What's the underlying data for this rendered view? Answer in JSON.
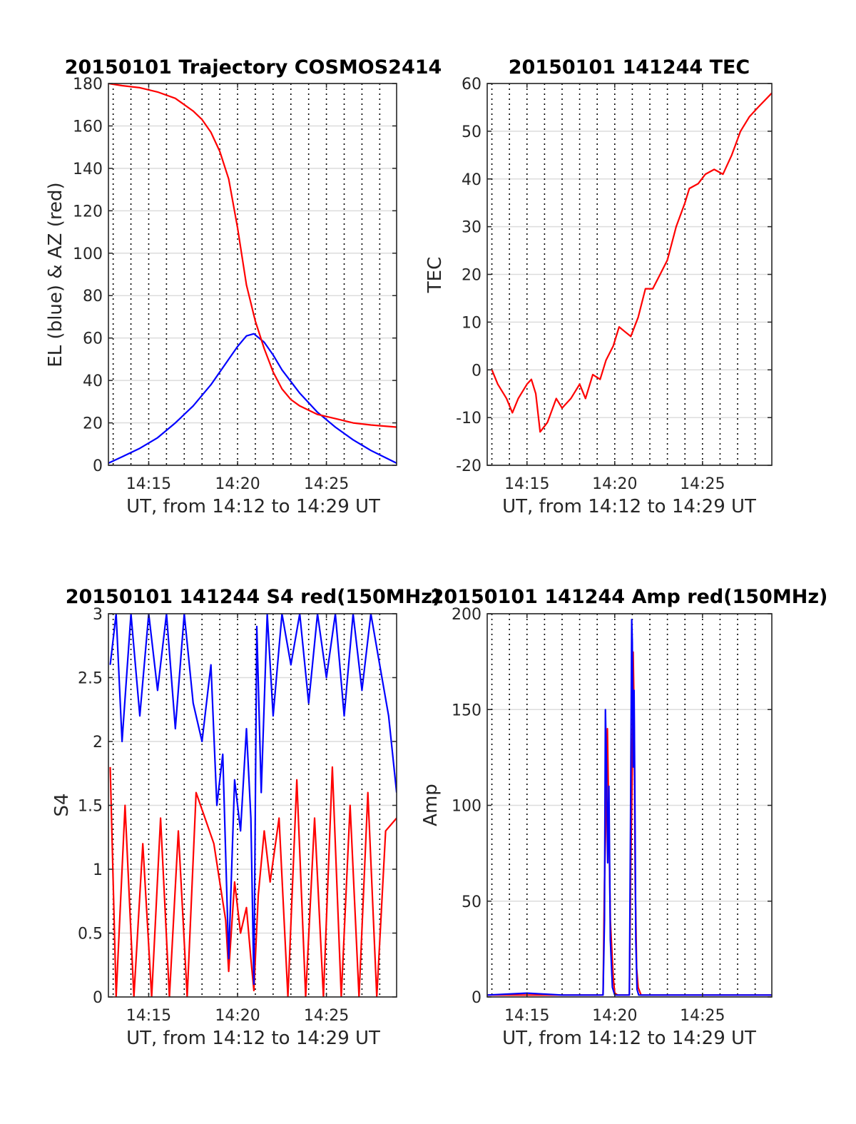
{
  "figure": {
    "background": "#ffffff"
  },
  "colors": {
    "red": "#ff0000",
    "blue": "#0000ff",
    "grid": "#dcdcdc",
    "vline": "#000000",
    "axis": "#262626"
  },
  "chart_data": [
    {
      "type": "line",
      "title": "20150101 Trajectory COSMOS2414",
      "xlabel": "UT, from 14:12 to 14:29 UT",
      "ylabel": "EL (blue) & AZ (red)",
      "xlim": [
        "14:12:44",
        "14:28:57"
      ],
      "ylim": [
        0,
        180
      ],
      "xticks": [
        {
          "t": "14:15:00",
          "label": "14:15"
        },
        {
          "t": "14:20:00",
          "label": "14:20"
        },
        {
          "t": "14:25:00",
          "label": "14:25"
        }
      ],
      "yticks": [
        "0",
        "20",
        "40",
        "60",
        "80",
        "100",
        "120",
        "140",
        "160",
        "180"
      ],
      "grid": true,
      "series": [
        {
          "color": "#0000ff",
          "x": [
            "14:12:44",
            "14:13:30",
            "14:14:30",
            "14:15:30",
            "14:16:30",
            "14:17:30",
            "14:18:30",
            "14:19:30",
            "14:20:00",
            "14:20:30",
            "14:20:55",
            "14:21:30",
            "14:22:00",
            "14:22:30",
            "14:23:30",
            "14:24:30",
            "14:25:30",
            "14:26:30",
            "14:27:30",
            "14:28:57"
          ],
          "values": [
            1,
            4,
            8,
            13,
            20,
            28,
            38,
            50,
            56,
            61,
            62,
            58,
            52,
            45,
            34,
            25,
            18,
            12,
            7,
            1
          ]
        },
        {
          "color": "#ff0000",
          "x": [
            "14:12:44",
            "14:13:30",
            "14:14:30",
            "14:15:30",
            "14:16:30",
            "14:17:30",
            "14:18:00",
            "14:18:30",
            "14:19:00",
            "14:19:30",
            "14:20:00",
            "14:20:30",
            "14:21:00",
            "14:21:30",
            "14:22:00",
            "14:22:30",
            "14:23:00",
            "14:23:30",
            "14:24:30",
            "14:25:30",
            "14:26:30",
            "14:27:30",
            "14:28:57"
          ],
          "values": [
            180,
            179,
            178,
            176,
            173,
            167,
            163,
            157,
            148,
            135,
            112,
            85,
            68,
            55,
            44,
            36,
            31,
            28,
            24,
            22,
            20,
            19,
            18
          ]
        }
      ]
    },
    {
      "type": "line",
      "title": "20150101 141244 TEC",
      "xlabel": "UT, from 14:12 to 14:29 UT",
      "ylabel": "TEC",
      "xlim": [
        "14:12:44",
        "14:28:57"
      ],
      "ylim": [
        -20,
        60
      ],
      "xticks": [
        {
          "t": "14:15:00",
          "label": "14:15"
        },
        {
          "t": "14:20:00",
          "label": "14:20"
        },
        {
          "t": "14:25:00",
          "label": "14:25"
        }
      ],
      "yticks": [
        "-20",
        "-10",
        "0",
        "10",
        "20",
        "30",
        "40",
        "50",
        "60"
      ],
      "grid": true,
      "series": [
        {
          "color": "#ff0000",
          "x": [
            "14:13:00",
            "14:13:20",
            "14:13:50",
            "14:14:10",
            "14:14:30",
            "14:15:00",
            "14:15:15",
            "14:15:30",
            "14:15:45",
            "14:16:10",
            "14:16:40",
            "14:17:00",
            "14:17:30",
            "14:18:00",
            "14:18:20",
            "14:18:45",
            "14:19:10",
            "14:19:30",
            "14:19:55",
            "14:20:15",
            "14:20:35",
            "14:20:55",
            "14:21:20",
            "14:21:45",
            "14:22:10",
            "14:22:35",
            "14:23:00",
            "14:23:30",
            "14:24:00",
            "14:24:15",
            "14:24:45",
            "14:25:10",
            "14:25:40",
            "14:26:10",
            "14:26:40",
            "14:27:10",
            "14:27:40",
            "14:28:10",
            "14:28:57"
          ],
          "values": [
            0,
            -3,
            -6,
            -9,
            -6,
            -3,
            -2,
            -5,
            -13,
            -11,
            -6,
            -8,
            -6,
            -3,
            -6,
            -1,
            -2,
            2,
            5,
            9,
            8,
            7,
            11,
            17,
            17,
            20,
            23,
            30,
            35,
            38,
            39,
            41,
            42,
            41,
            45,
            50,
            53,
            55,
            58
          ]
        }
      ]
    },
    {
      "type": "line",
      "title": "20150101 141244 S4 red(150MHz)",
      "xlabel": "UT, from 14:12 to 14:29 UT",
      "ylabel": "S4",
      "xlim": [
        "14:12:44",
        "14:28:57"
      ],
      "ylim": [
        0,
        3
      ],
      "xticks": [
        {
          "t": "14:15:00",
          "label": "14:15"
        },
        {
          "t": "14:20:00",
          "label": "14:20"
        },
        {
          "t": "14:25:00",
          "label": "14:25"
        }
      ],
      "yticks": [
        "0",
        "0.5",
        "1",
        "1.5",
        "2",
        "2.5",
        "3"
      ],
      "grid": true,
      "series": [
        {
          "color": "#ff0000",
          "x": [
            "14:12:50",
            "14:13:10",
            "14:13:40",
            "14:14:10",
            "14:14:40",
            "14:15:10",
            "14:15:40",
            "14:16:10",
            "14:16:40",
            "14:17:10",
            "14:17:40",
            "14:18:10",
            "14:18:40",
            "14:19:00",
            "14:19:20",
            "14:19:30",
            "14:19:50",
            "14:20:10",
            "14:20:30",
            "14:20:45",
            "14:20:55",
            "14:21:10",
            "14:21:30",
            "14:21:50",
            "14:22:20",
            "14:22:50",
            "14:23:20",
            "14:23:50",
            "14:24:20",
            "14:24:50",
            "14:25:20",
            "14:25:50",
            "14:26:20",
            "14:26:50",
            "14:27:20",
            "14:27:50",
            "14:28:20",
            "14:28:57"
          ],
          "values": [
            1.8,
            0,
            1.5,
            0,
            1.2,
            0,
            1.4,
            0,
            1.3,
            0,
            1.6,
            1.4,
            1.2,
            0.9,
            0.6,
            0.2,
            0.9,
            0.5,
            0.7,
            0.3,
            0.05,
            0.8,
            1.3,
            0.9,
            1.4,
            0,
            1.7,
            0,
            1.4,
            0,
            1.8,
            0,
            1.5,
            0,
            1.6,
            0,
            1.3,
            1.4
          ]
        },
        {
          "color": "#0000ff",
          "x": [
            "14:12:50",
            "14:13:10",
            "14:13:30",
            "14:14:00",
            "14:14:30",
            "14:15:00",
            "14:15:30",
            "14:16:00",
            "14:16:30",
            "14:17:00",
            "14:17:30",
            "14:18:00",
            "14:18:30",
            "14:18:50",
            "14:19:10",
            "14:19:30",
            "14:19:50",
            "14:20:10",
            "14:20:30",
            "14:20:45",
            "14:20:55",
            "14:21:05",
            "14:21:20",
            "14:21:40",
            "14:22:00",
            "14:22:30",
            "14:23:00",
            "14:23:30",
            "14:24:00",
            "14:24:30",
            "14:25:00",
            "14:25:30",
            "14:26:00",
            "14:26:30",
            "14:27:00",
            "14:27:30",
            "14:28:00",
            "14:28:30",
            "14:28:57"
          ],
          "values": [
            2.6,
            3,
            2.0,
            3,
            2.2,
            3,
            2.4,
            3,
            2.1,
            3,
            2.3,
            2.0,
            2.6,
            1.5,
            1.9,
            0.3,
            1.7,
            1.3,
            2.1,
            1.4,
            0.1,
            2.9,
            1.6,
            3,
            2.2,
            3,
            2.6,
            3,
            2.3,
            3,
            2.5,
            3,
            2.2,
            3,
            2.4,
            3,
            2.6,
            2.2,
            1.6
          ]
        }
      ]
    },
    {
      "type": "line",
      "title": "20150101 141244 Amp red(150MHz)",
      "xlabel": "UT, from 14:12 to 14:29 UT",
      "ylabel": "Amp",
      "xlim": [
        "14:12:44",
        "14:28:57"
      ],
      "ylim": [
        0,
        200
      ],
      "xticks": [
        {
          "t": "14:15:00",
          "label": "14:15"
        },
        {
          "t": "14:20:00",
          "label": "14:20"
        },
        {
          "t": "14:25:00",
          "label": "14:25"
        }
      ],
      "yticks": [
        "0",
        "50",
        "100",
        "150",
        "200"
      ],
      "grid": true,
      "series": [
        {
          "color": "#ff0000",
          "x": [
            "14:12:44",
            "14:19:20",
            "14:19:25",
            "14:19:30",
            "14:19:35",
            "14:19:40",
            "14:19:45",
            "14:19:55",
            "14:20:00",
            "14:20:10",
            "14:20:50",
            "14:20:55",
            "14:21:00",
            "14:21:03",
            "14:21:06",
            "14:21:10",
            "14:21:15",
            "14:21:20",
            "14:21:30",
            "14:28:57"
          ],
          "values": [
            1,
            1,
            60,
            95,
            140,
            90,
            40,
            10,
            2,
            1,
            1,
            70,
            120,
            180,
            150,
            60,
            15,
            5,
            1,
            1
          ]
        },
        {
          "color": "#0000ff",
          "x": [
            "14:12:44",
            "14:15:00",
            "14:17:00",
            "14:19:20",
            "14:19:25",
            "14:19:28",
            "14:19:32",
            "14:19:36",
            "14:19:40",
            "14:19:45",
            "14:19:52",
            "14:20:00",
            "14:20:50",
            "14:20:54",
            "14:20:58",
            "14:21:00",
            "14:21:03",
            "14:21:06",
            "14:21:09",
            "14:21:12",
            "14:21:16",
            "14:21:22",
            "14:28:57"
          ],
          "values": [
            1,
            2,
            1,
            1,
            40,
            150,
            120,
            70,
            110,
            30,
            5,
            1,
            1,
            90,
            197,
            185,
            120,
            160,
            100,
            30,
            4,
            1,
            1
          ]
        }
      ]
    }
  ]
}
